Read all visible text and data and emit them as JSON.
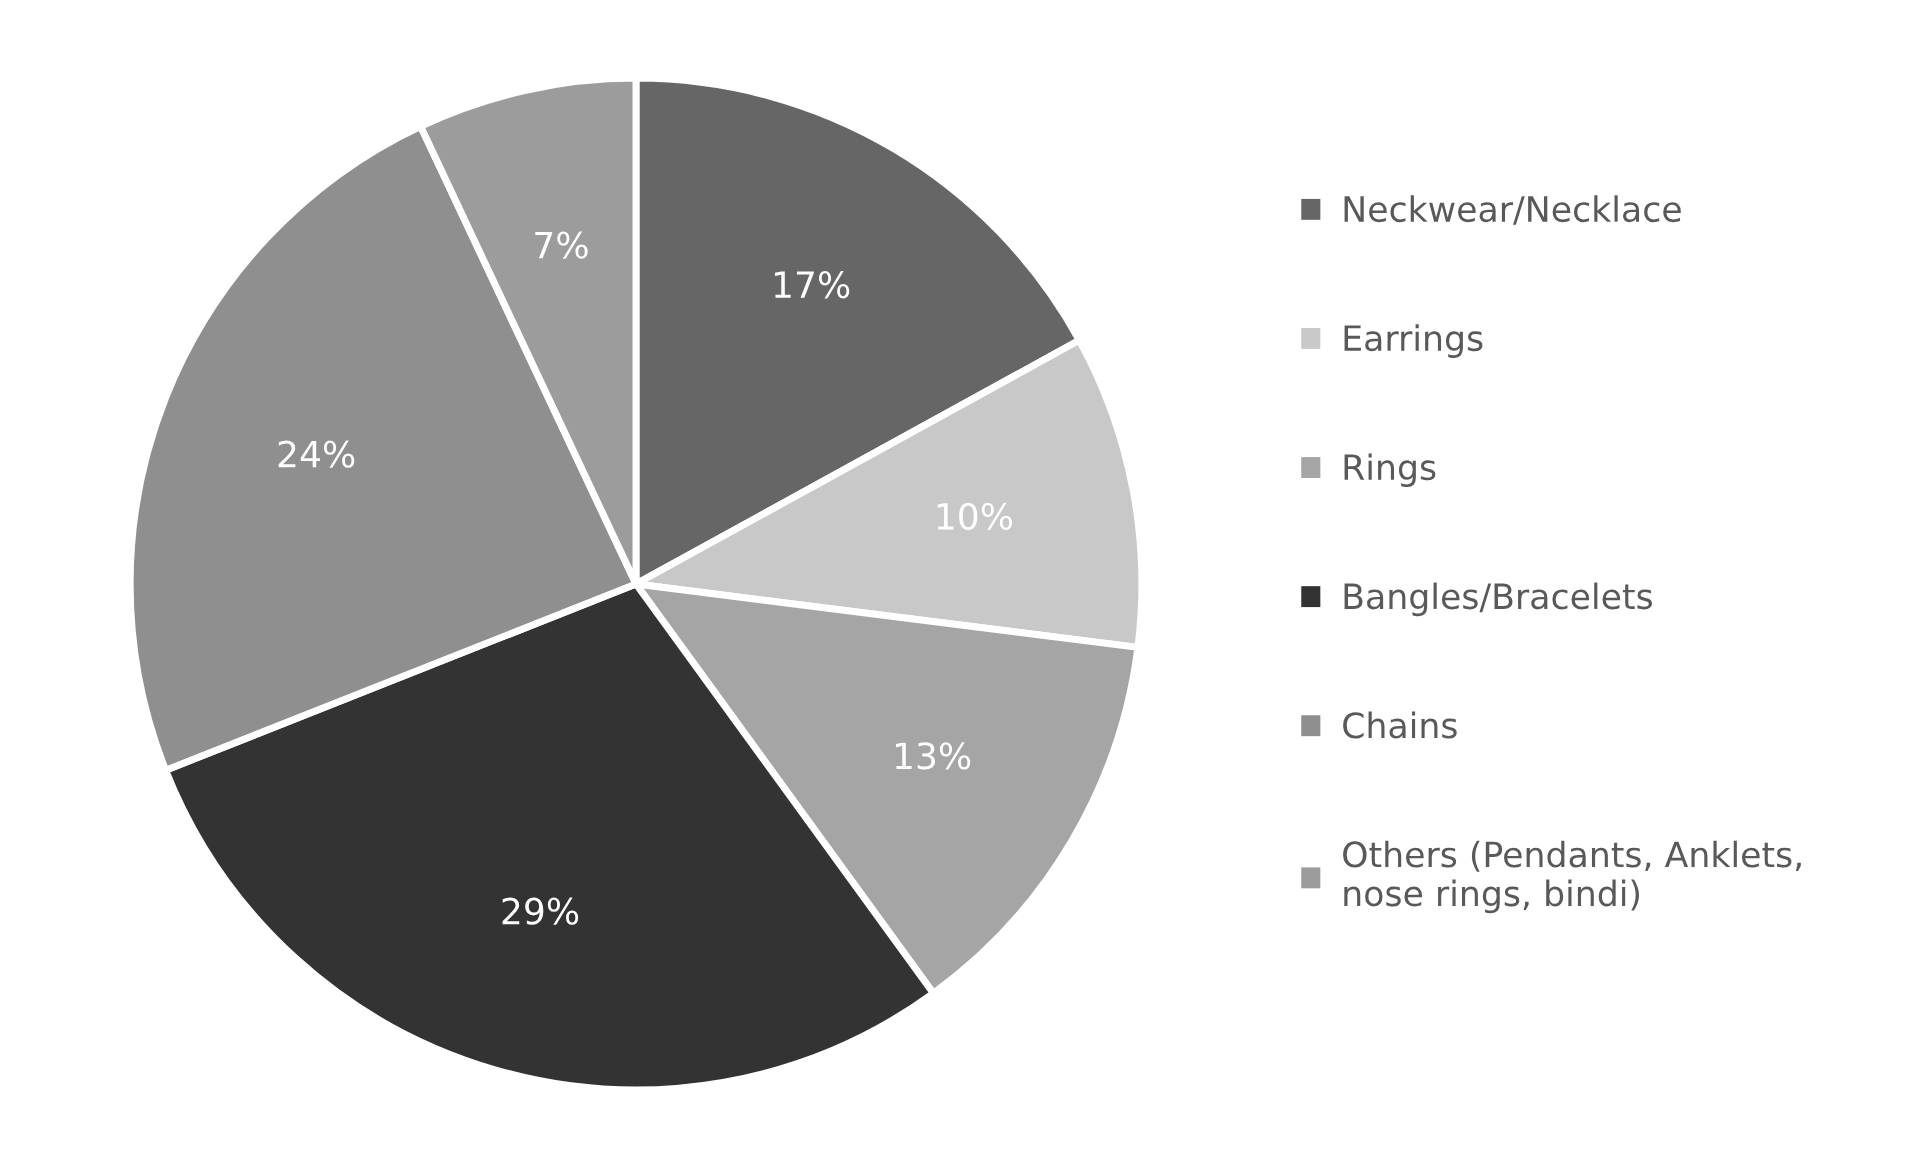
{
  "chart_data": {
    "type": "pie",
    "categories": [
      "Neckwear/Necklace",
      "Earrings",
      "Rings",
      "Bangles/Bracelets",
      "Chains",
      "Others (Pendants, Anklets,\nnose rings, bindi)"
    ],
    "values": [
      17,
      10,
      13,
      29,
      24,
      7
    ],
    "colors": [
      "#666666",
      "#c8c8c8",
      "#a5a5a5",
      "#333333",
      "#8f8f8f",
      "#9c9c9c"
    ],
    "value_labels": [
      "17%",
      "10%",
      "13%",
      "29%",
      "24%",
      "7%"
    ],
    "legend": "right"
  }
}
